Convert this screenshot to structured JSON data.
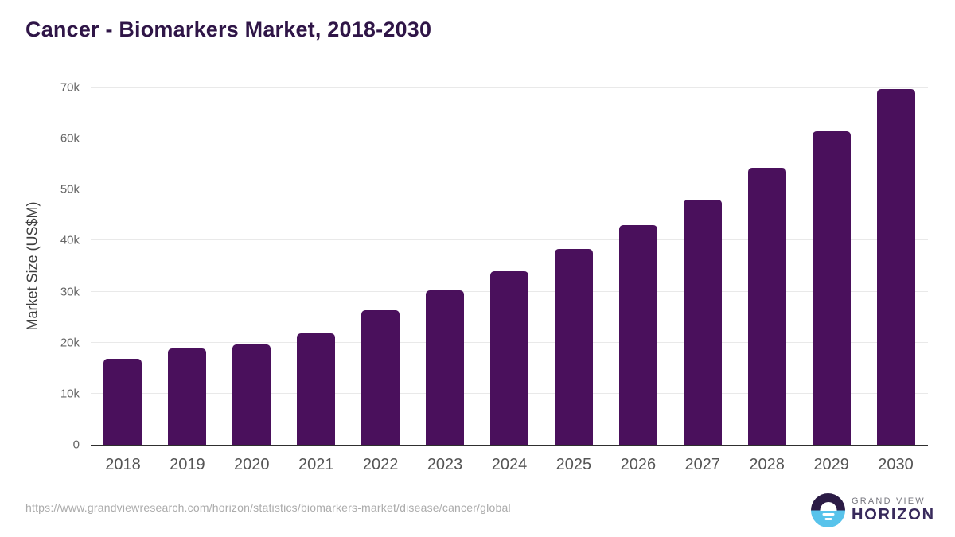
{
  "chart_data": {
    "type": "bar",
    "title": "Cancer - Biomarkers Market, 2018-2030",
    "categories": [
      "2018",
      "2019",
      "2020",
      "2021",
      "2022",
      "2023",
      "2024",
      "2025",
      "2026",
      "2027",
      "2028",
      "2029",
      "2030"
    ],
    "values": [
      16800,
      18900,
      19600,
      21800,
      26300,
      30200,
      34000,
      38300,
      43100,
      48000,
      54200,
      61500,
      69700
    ],
    "xlabel": "",
    "ylabel": "Market Size (US$M)",
    "ylim": [
      0,
      70000
    ],
    "ytick_labels": [
      "0",
      "10k",
      "20k",
      "30k",
      "40k",
      "50k",
      "60k",
      "70k"
    ],
    "grid": true,
    "legend": "none"
  },
  "footer": {
    "source_url": "https://www.grandviewresearch.com/horizon/statistics/biomarkers-market/disease/cancer/global",
    "logo": {
      "top_label": "GRAND VIEW",
      "bottom_label": "HORIZON",
      "icon": "horizon-sunrise-circle-icon"
    }
  },
  "colors": {
    "bar": "#4a105c",
    "title": "#2f1547",
    "grid": "#e9e9e9",
    "axis": "#2f2f2f",
    "ytick": "#666666",
    "xtick": "#555555",
    "ylabel": "#3f3f3f",
    "url": "#ababab",
    "logo_purple": "#2b1b45",
    "logo_blue": "#58c3eb",
    "logo_gray": "#77777f",
    "logo_text_purple": "#382a5c"
  }
}
